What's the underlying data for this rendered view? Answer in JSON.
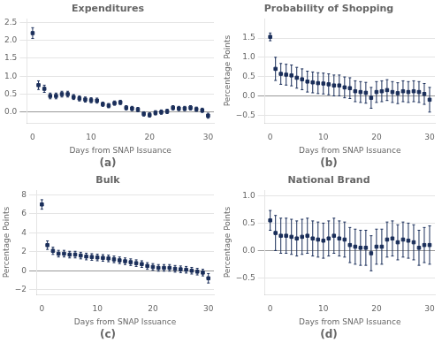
{
  "chart_data": [
    {
      "type": "scatter",
      "title": "Expenditures",
      "subtitle": "(a)",
      "x_label": "Days from SNAP Issuance",
      "color": "#1a2e5a",
      "marker": "square",
      "grid": "y",
      "x": [
        0,
        1,
        2,
        3,
        4,
        5,
        6,
        7,
        8,
        9,
        10,
        11,
        12,
        13,
        14,
        15,
        16,
        17,
        18,
        19,
        20,
        21,
        22,
        23,
        24,
        25,
        26,
        27,
        28,
        29,
        30
      ],
      "values": [
        2.2,
        0.75,
        0.65,
        0.45,
        0.45,
        0.5,
        0.5,
        0.42,
        0.38,
        0.35,
        0.33,
        0.32,
        0.22,
        0.18,
        0.25,
        0.27,
        0.12,
        0.1,
        0.07,
        -0.05,
        -0.08,
        -0.02,
        0.0,
        0.02,
        0.12,
        0.1,
        0.1,
        0.12,
        0.08,
        0.05,
        -0.1
      ],
      "err_low": [
        0.15,
        0.12,
        0.1,
        0.08,
        0.08,
        0.08,
        0.08,
        0.07,
        0.07,
        0.07,
        0.07,
        0.07,
        0.06,
        0.06,
        0.06,
        0.06,
        0.06,
        0.06,
        0.06,
        0.06,
        0.06,
        0.06,
        0.06,
        0.06,
        0.06,
        0.06,
        0.06,
        0.06,
        0.06,
        0.06,
        0.07
      ],
      "err_high": [
        0.15,
        0.12,
        0.1,
        0.08,
        0.08,
        0.08,
        0.08,
        0.07,
        0.07,
        0.07,
        0.07,
        0.07,
        0.06,
        0.06,
        0.06,
        0.06,
        0.06,
        0.06,
        0.06,
        0.06,
        0.06,
        0.06,
        0.06,
        0.06,
        0.06,
        0.06,
        0.06,
        0.06,
        0.06,
        0.06,
        0.07
      ],
      "xlim": [
        -1,
        31
      ],
      "xticks": [
        0,
        10,
        20,
        30
      ],
      "ylim": [
        -0.3,
        2.6
      ],
      "yticks": [
        {
          "value": 0,
          "label": "0.0"
        },
        0.5,
        {
          "value": 1,
          "label": "1.0"
        },
        1.5,
        {
          "value": 2,
          "label": "2.0"
        },
        2.5
      ]
    },
    {
      "type": "scatter",
      "title": "Probability of Shopping",
      "subtitle": "(b)",
      "x_label": "Days from SNAP Issuance",
      "y_label": "Percentage Points",
      "color": "#1a2e5a",
      "marker": "square",
      "grid": "y",
      "x": [
        0,
        1,
        2,
        3,
        4,
        5,
        6,
        7,
        8,
        9,
        10,
        11,
        12,
        13,
        14,
        15,
        16,
        17,
        18,
        19,
        20,
        21,
        22,
        23,
        24,
        25,
        26,
        27,
        28,
        29,
        30
      ],
      "values": [
        1.53,
        0.7,
        0.57,
        0.55,
        0.53,
        0.47,
        0.43,
        0.37,
        0.35,
        0.33,
        0.32,
        0.3,
        0.27,
        0.27,
        0.22,
        0.2,
        0.12,
        0.1,
        0.08,
        -0.05,
        0.1,
        0.12,
        0.15,
        0.1,
        0.07,
        0.12,
        0.1,
        0.12,
        0.1,
        0.05,
        -0.1
      ],
      "err_low": [
        0.1,
        0.3,
        0.27,
        0.27,
        0.27,
        0.27,
        0.27,
        0.27,
        0.27,
        0.27,
        0.27,
        0.27,
        0.27,
        0.27,
        0.27,
        0.27,
        0.27,
        0.27,
        0.27,
        0.27,
        0.27,
        0.27,
        0.27,
        0.27,
        0.27,
        0.27,
        0.27,
        0.27,
        0.27,
        0.27,
        0.32
      ],
      "err_high": [
        0.1,
        0.3,
        0.27,
        0.27,
        0.27,
        0.27,
        0.27,
        0.27,
        0.27,
        0.27,
        0.27,
        0.27,
        0.27,
        0.27,
        0.27,
        0.27,
        0.27,
        0.27,
        0.27,
        0.27,
        0.27,
        0.27,
        0.27,
        0.27,
        0.27,
        0.27,
        0.27,
        0.27,
        0.27,
        0.27,
        0.32
      ],
      "xlim": [
        -1,
        31
      ],
      "xticks": [
        0,
        10,
        20,
        30
      ],
      "ylim": [
        -0.7,
        2.0
      ],
      "yticks": [
        {
          "value": -0.5,
          "label": "−0.5"
        },
        {
          "value": 0,
          "label": "0.0"
        },
        0.5,
        {
          "value": 1,
          "label": "1.0"
        },
        1.5
      ]
    },
    {
      "type": "scatter",
      "title": "Bulk",
      "subtitle": "(c)",
      "x_label": "Days from SNAP Issuance",
      "y_label": "Percentage Points",
      "color": "#1a2e5a",
      "marker": "square",
      "grid": "y",
      "x": [
        0,
        1,
        2,
        3,
        4,
        5,
        6,
        7,
        8,
        9,
        10,
        11,
        12,
        13,
        14,
        15,
        16,
        17,
        18,
        19,
        20,
        21,
        22,
        23,
        24,
        25,
        26,
        27,
        28,
        29,
        30
      ],
      "values": [
        7.0,
        2.7,
        2.1,
        1.8,
        1.8,
        1.7,
        1.7,
        1.6,
        1.5,
        1.45,
        1.4,
        1.35,
        1.3,
        1.2,
        1.1,
        1.0,
        0.9,
        0.8,
        0.7,
        0.5,
        0.4,
        0.3,
        0.3,
        0.3,
        0.2,
        0.15,
        0.1,
        0.0,
        -0.1,
        -0.2,
        -0.8
      ],
      "err_low": [
        0.5,
        0.45,
        0.38,
        0.35,
        0.35,
        0.35,
        0.35,
        0.35,
        0.35,
        0.35,
        0.35,
        0.35,
        0.35,
        0.35,
        0.35,
        0.35,
        0.35,
        0.35,
        0.35,
        0.35,
        0.35,
        0.35,
        0.35,
        0.35,
        0.35,
        0.35,
        0.35,
        0.35,
        0.35,
        0.35,
        0.5
      ],
      "err_high": [
        0.5,
        0.45,
        0.38,
        0.35,
        0.35,
        0.35,
        0.35,
        0.35,
        0.35,
        0.35,
        0.35,
        0.35,
        0.35,
        0.35,
        0.35,
        0.35,
        0.35,
        0.35,
        0.35,
        0.35,
        0.35,
        0.35,
        0.35,
        0.35,
        0.35,
        0.35,
        0.35,
        0.35,
        0.35,
        0.35,
        0.5
      ],
      "xlim": [
        -1,
        31
      ],
      "xticks": [
        0,
        10,
        20,
        30
      ],
      "ylim": [
        -2.5,
        8.5
      ],
      "yticks": [
        {
          "value": -2,
          "label": "−2"
        },
        0,
        2,
        4,
        6,
        8
      ]
    },
    {
      "type": "scatter",
      "title": "National Brand",
      "subtitle": "(d)",
      "x_label": "Days from SNAP Issuance",
      "y_label": "Percentage Points",
      "color": "#1a2e5a",
      "marker": "square",
      "grid": "y",
      "x": [
        0,
        1,
        2,
        3,
        4,
        5,
        6,
        7,
        8,
        9,
        10,
        11,
        12,
        13,
        14,
        15,
        16,
        17,
        18,
        19,
        20,
        21,
        22,
        23,
        24,
        25,
        26,
        27,
        28,
        29,
        30
      ],
      "values": [
        0.55,
        0.32,
        0.27,
        0.27,
        0.25,
        0.22,
        0.25,
        0.27,
        0.22,
        0.2,
        0.18,
        0.22,
        0.27,
        0.22,
        0.2,
        0.1,
        0.07,
        0.05,
        0.05,
        -0.05,
        0.07,
        0.07,
        0.2,
        0.22,
        0.15,
        0.2,
        0.18,
        0.15,
        0.05,
        0.1,
        0.1
      ],
      "err_low": [
        0.18,
        0.32,
        0.32,
        0.32,
        0.32,
        0.32,
        0.32,
        0.32,
        0.32,
        0.32,
        0.32,
        0.32,
        0.32,
        0.32,
        0.32,
        0.32,
        0.32,
        0.32,
        0.32,
        0.32,
        0.32,
        0.32,
        0.32,
        0.32,
        0.32,
        0.32,
        0.32,
        0.32,
        0.32,
        0.32,
        0.35
      ],
      "err_high": [
        0.18,
        0.32,
        0.32,
        0.32,
        0.32,
        0.32,
        0.32,
        0.32,
        0.32,
        0.32,
        0.32,
        0.32,
        0.32,
        0.32,
        0.32,
        0.32,
        0.32,
        0.32,
        0.32,
        0.32,
        0.32,
        0.32,
        0.32,
        0.32,
        0.32,
        0.32,
        0.32,
        0.32,
        0.32,
        0.32,
        0.35
      ],
      "xlim": [
        -1,
        31
      ],
      "xticks": [
        0,
        10,
        20,
        30
      ],
      "ylim": [
        -0.8,
        1.1
      ],
      "yticks": [
        {
          "value": -0.5,
          "label": "−0.5"
        },
        {
          "value": 0,
          "label": "0.0"
        },
        0.5,
        {
          "value": 1,
          "label": "1.0"
        }
      ]
    }
  ]
}
